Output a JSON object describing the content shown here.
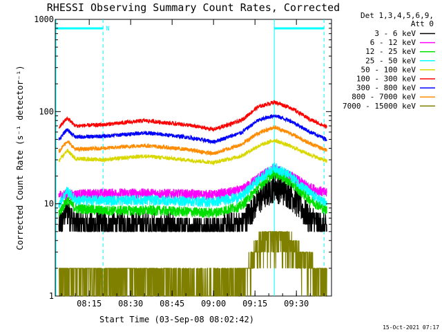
{
  "chart_data": {
    "type": "line",
    "title": "RHESSI Observing Summary Count Rates, Corrected",
    "xlabel": "Start Time (03-Sep-08 08:02:42)",
    "ylabel": "Corrected Count Rate (s⁻¹ detector⁻¹)",
    "y_scale": "log",
    "ylim": [
      1,
      1000
    ],
    "xlim": [
      "08:02:42",
      "09:42:42"
    ],
    "x_tick_labels": [
      "08:15",
      "08:30",
      "08:45",
      "09:00",
      "09:15",
      "09:30"
    ],
    "y_tick_labels": [
      "1",
      "10",
      "100",
      "1000"
    ],
    "legend_header": [
      "Det 1,3,4,5,6,9,",
      "Att 0"
    ],
    "legend_position": "right",
    "markers": {
      "night_start": "08:02:42",
      "night_end": "08:20:00",
      "day_start": "09:22:00",
      "day_end": "09:40:00",
      "N_label": "N",
      "flag_color": "#00ffff"
    },
    "series": [
      {
        "name": "3 - 6 keV",
        "color": "#000000",
        "points": [
          [
            "08:04",
            5.5
          ],
          [
            "08:07",
            9
          ],
          [
            "08:10",
            6
          ],
          [
            "08:20",
            6
          ],
          [
            "08:35",
            6
          ],
          [
            "08:50",
            5.5
          ],
          [
            "09:00",
            5.5
          ],
          [
            "09:10",
            6
          ],
          [
            "09:16",
            11
          ],
          [
            "09:22",
            16
          ],
          [
            "09:28",
            13
          ],
          [
            "09:35",
            7
          ],
          [
            "09:41",
            5.5
          ]
        ]
      },
      {
        "name": "6 - 12 keV",
        "color": "#ff00ff",
        "points": [
          [
            "08:04",
            12.5
          ],
          [
            "08:20",
            13
          ],
          [
            "08:40",
            13
          ],
          [
            "09:00",
            12.5
          ],
          [
            "09:10",
            14
          ],
          [
            "09:16",
            19
          ],
          [
            "09:22",
            24
          ],
          [
            "09:28",
            20
          ],
          [
            "09:35",
            15
          ],
          [
            "09:41",
            13
          ]
        ]
      },
      {
        "name": "12 - 25 keV",
        "color": "#00e000",
        "points": [
          [
            "08:04",
            8
          ],
          [
            "08:07",
            11
          ],
          [
            "08:10",
            9
          ],
          [
            "08:20",
            8.5
          ],
          [
            "08:40",
            8.5
          ],
          [
            "09:00",
            8
          ],
          [
            "09:10",
            9.5
          ],
          [
            "09:16",
            15
          ],
          [
            "09:22",
            22
          ],
          [
            "09:28",
            17
          ],
          [
            "09:35",
            11
          ],
          [
            "09:41",
            8.5
          ]
        ]
      },
      {
        "name": "25 - 50 keV",
        "color": "#00ffff",
        "points": [
          [
            "08:04",
            10
          ],
          [
            "08:07",
            14
          ],
          [
            "08:10",
            11
          ],
          [
            "08:20",
            11
          ],
          [
            "08:40",
            11
          ],
          [
            "09:00",
            10.5
          ],
          [
            "09:10",
            12
          ],
          [
            "09:16",
            18
          ],
          [
            "09:22",
            25
          ],
          [
            "09:28",
            20
          ],
          [
            "09:35",
            13
          ],
          [
            "09:41",
            10
          ]
        ]
      },
      {
        "name": "50 - 100 keV",
        "color": "#d8d800",
        "points": [
          [
            "08:04",
            29
          ],
          [
            "08:07",
            38
          ],
          [
            "08:10",
            31
          ],
          [
            "08:20",
            30
          ],
          [
            "08:35",
            33
          ],
          [
            "08:50",
            30
          ],
          [
            "09:00",
            28
          ],
          [
            "09:10",
            33
          ],
          [
            "09:16",
            42
          ],
          [
            "09:22",
            49
          ],
          [
            "09:28",
            42
          ],
          [
            "09:35",
            34
          ],
          [
            "09:41",
            29
          ]
        ]
      },
      {
        "name": "100 - 300 keV",
        "color": "#ff0000",
        "points": [
          [
            "08:04",
            67
          ],
          [
            "08:07",
            85
          ],
          [
            "08:10",
            70
          ],
          [
            "08:20",
            72
          ],
          [
            "08:35",
            80
          ],
          [
            "08:50",
            72
          ],
          [
            "09:00",
            64
          ],
          [
            "09:10",
            80
          ],
          [
            "09:16",
            112
          ],
          [
            "09:22",
            127
          ],
          [
            "09:28",
            110
          ],
          [
            "09:35",
            82
          ],
          [
            "09:41",
            68
          ]
        ]
      },
      {
        "name": "300 - 800 keV",
        "color": "#0000ff",
        "points": [
          [
            "08:04",
            50
          ],
          [
            "08:07",
            64
          ],
          [
            "08:10",
            53
          ],
          [
            "08:20",
            54
          ],
          [
            "08:35",
            59
          ],
          [
            "08:50",
            53
          ],
          [
            "09:00",
            47
          ],
          [
            "09:10",
            59
          ],
          [
            "09:16",
            80
          ],
          [
            "09:22",
            91
          ],
          [
            "09:28",
            79
          ],
          [
            "09:35",
            60
          ],
          [
            "09:41",
            50
          ]
        ]
      },
      {
        "name": "800 - 7000 keV",
        "color": "#ff8c00",
        "points": [
          [
            "08:04",
            37
          ],
          [
            "08:07",
            48
          ],
          [
            "08:10",
            39
          ],
          [
            "08:20",
            40
          ],
          [
            "08:35",
            43
          ],
          [
            "08:50",
            39
          ],
          [
            "09:00",
            35
          ],
          [
            "09:10",
            44
          ],
          [
            "09:16",
            58
          ],
          [
            "09:22",
            68
          ],
          [
            "09:28",
            58
          ],
          [
            "09:35",
            45
          ],
          [
            "09:41",
            38
          ]
        ]
      },
      {
        "name": "7000 - 15000 keV",
        "color": "#808000",
        "points": [
          [
            "08:04",
            1.5
          ],
          [
            "08:20",
            1.3
          ],
          [
            "08:35",
            1.5
          ],
          [
            "08:50",
            1.0
          ],
          [
            "09:05",
            1.0
          ],
          [
            "09:12",
            1.6
          ],
          [
            "09:16",
            3.0
          ],
          [
            "09:20",
            4.5
          ],
          [
            "09:24",
            4.8
          ],
          [
            "09:28",
            3.2
          ],
          [
            "09:34",
            2.0
          ],
          [
            "09:41",
            1.2
          ]
        ]
      }
    ]
  },
  "footer": {
    "timestamp": "15-Oct-2021 07:17"
  }
}
